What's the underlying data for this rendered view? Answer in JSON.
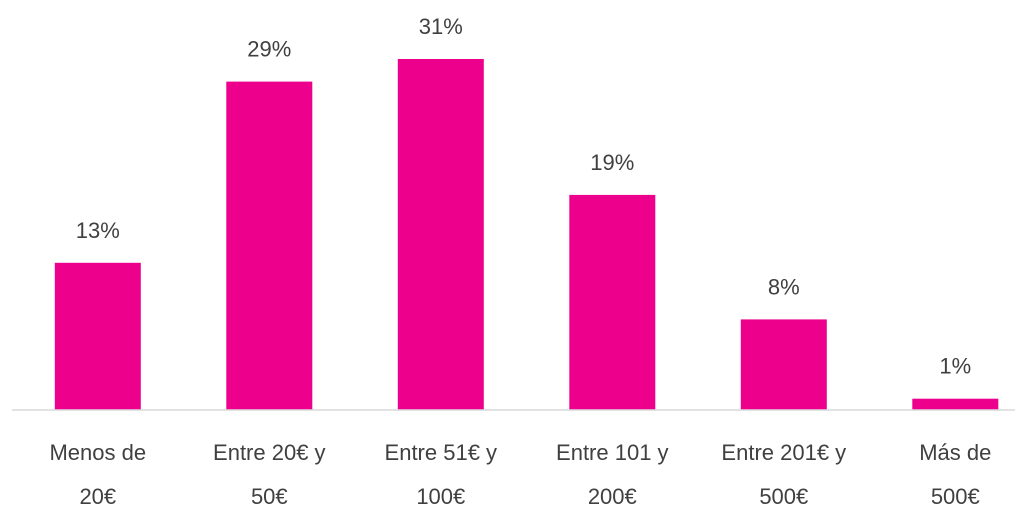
{
  "chart_data": {
    "type": "bar",
    "categories": [
      [
        "Menos de",
        "20€"
      ],
      [
        "Entre 20€ y",
        "50€"
      ],
      [
        "Entre 51€ y",
        "100€"
      ],
      [
        "Entre 101 y",
        "200€"
      ],
      [
        "Entre 201€ y",
        "500€"
      ],
      [
        "Más de",
        "500€"
      ]
    ],
    "values": [
      13,
      29,
      31,
      19,
      8,
      1
    ],
    "data_labels": [
      "13%",
      "29%",
      "31%",
      "19%",
      "8%",
      "1%"
    ],
    "unit": "%",
    "ylim": [
      0,
      31
    ],
    "grid": false,
    "legend": "none",
    "colors": {
      "bar": "#EC008C",
      "axis": "#D9D9D9",
      "text": "#404040"
    }
  }
}
